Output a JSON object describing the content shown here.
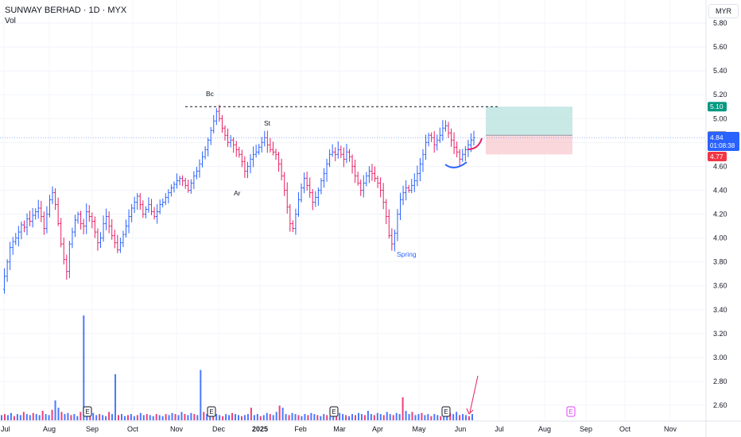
{
  "header": {
    "title": "SUNWAY BERHAD · 1D · MYX",
    "indicator": "Vol",
    "currency": "MYR"
  },
  "chart_data": {
    "type": "candlestick",
    "ylim": [
      2.5,
      5.92
    ],
    "y_ticks": [
      "5.80",
      "5.60",
      "5.40",
      "5.20",
      "5.00",
      "4.80",
      "4.60",
      "4.40",
      "4.20",
      "4.00",
      "3.80",
      "3.60",
      "3.40",
      "3.20",
      "3.00",
      "2.80",
      "2.60"
    ],
    "x_ticks": [
      "Jul",
      "Aug",
      "Sep",
      "Oct",
      "Nov",
      "Dec",
      "2025",
      "Feb",
      "Mar",
      "Apr",
      "May",
      "Jun",
      "Jul",
      "Aug",
      "Sep",
      "Oct",
      "Nov"
    ],
    "price_labels": {
      "target": "5.10",
      "prev": "4.86",
      "current": "4.84",
      "countdown": "01:08:38",
      "stop": "4.77"
    },
    "levels": {
      "resistance": 5.1,
      "current": 4.84,
      "entry": 4.86,
      "stop": 4.77
    },
    "annotations": [
      {
        "text": "Bc",
        "price": 5.2
      },
      {
        "text": "St",
        "price": 4.97
      },
      {
        "text": "Ar",
        "price": 4.4
      },
      {
        "text": "Spring",
        "price": 3.82
      }
    ],
    "earnings_markers": [
      "E",
      "E",
      "E",
      "E",
      "E"
    ],
    "colors": {
      "up": "#2962ff",
      "down": "#e91e63",
      "target_zone": "#b2dfdb",
      "stop_zone": "#f8c6cc",
      "target_badge": "#089981",
      "stop_badge": "#f23645",
      "current_badge": "#2962ff",
      "prev_badge": "#787b86"
    },
    "price_path": [
      3.57,
      3.68,
      3.8,
      3.92,
      3.97,
      4.0,
      4.05,
      4.11,
      4.09,
      4.16,
      4.14,
      4.19,
      4.22,
      4.25,
      4.18,
      4.08,
      4.2,
      4.32,
      4.38,
      4.28,
      4.12,
      3.95,
      3.82,
      3.72,
      3.95,
      4.05,
      4.15,
      4.2,
      4.12,
      4.1,
      4.22,
      4.18,
      4.14,
      4.05,
      3.96,
      4.0,
      4.12,
      4.18,
      4.1,
      4.02,
      3.96,
      3.9,
      3.96,
      4.03,
      4.1,
      4.18,
      4.25,
      4.3,
      4.35,
      4.28,
      4.2,
      4.24,
      4.28,
      4.22,
      4.18,
      4.22,
      4.28,
      4.3,
      4.34,
      4.38,
      4.42,
      4.45,
      4.48,
      4.5,
      4.48,
      4.44,
      4.4,
      4.46,
      4.52,
      4.56,
      4.62,
      4.68,
      4.74,
      4.82,
      4.9,
      4.98,
      5.06,
      5.0,
      4.92,
      4.86,
      4.8,
      4.82,
      4.78,
      4.74,
      4.7,
      4.64,
      4.56,
      4.6,
      4.66,
      4.7,
      4.72,
      4.76,
      4.8,
      4.84,
      4.78,
      4.74,
      4.72,
      4.7,
      4.62,
      4.52,
      4.4,
      4.26,
      4.12,
      4.08,
      4.2,
      4.32,
      4.42,
      4.5,
      4.44,
      4.38,
      4.3,
      4.34,
      4.4,
      4.48,
      4.54,
      4.62,
      4.7,
      4.72,
      4.7,
      4.74,
      4.7,
      4.66,
      4.72,
      4.68,
      4.6,
      4.52,
      4.46,
      4.4,
      4.46,
      4.52,
      4.56,
      4.54,
      4.5,
      4.46,
      4.4,
      4.3,
      4.18,
      4.02,
      3.95,
      4.04,
      4.2,
      4.32,
      4.38,
      4.42,
      4.4,
      4.44,
      4.48,
      4.54,
      4.62,
      4.7,
      4.8,
      4.86,
      4.84,
      4.78,
      4.82,
      4.86,
      4.92,
      4.94,
      4.88,
      4.82,
      4.76,
      4.72,
      4.66,
      4.7,
      4.74,
      4.78,
      4.82,
      4.84
    ],
    "volume_path": [
      0.05,
      0.06,
      0.05,
      0.07,
      0.04,
      0.06,
      0.05,
      0.08,
      0.06,
      0.05,
      0.07,
      0.06,
      0.05,
      0.09,
      0.06,
      0.05,
      0.1,
      0.19,
      0.12,
      0.08,
      0.06,
      0.07,
      0.05,
      0.06,
      0.04,
      0.08,
      1.0,
      0.06,
      0.05,
      0.07,
      0.05,
      0.06,
      0.05,
      0.04,
      0.08,
      0.06,
      0.44,
      0.05,
      0.06,
      0.04,
      0.05,
      0.06,
      0.04,
      0.05,
      0.07,
      0.05,
      0.06,
      0.05,
      0.04,
      0.06,
      0.05,
      0.04,
      0.06,
      0.05,
      0.07,
      0.06,
      0.05,
      0.08,
      0.06,
      0.05,
      0.07,
      0.06,
      0.05,
      0.48,
      0.08,
      0.06,
      0.05,
      0.07,
      0.06,
      0.05,
      0.04,
      0.06,
      0.05,
      0.07,
      0.06,
      0.05,
      0.04,
      0.05,
      0.06,
      0.12,
      0.05,
      0.06,
      0.04,
      0.05,
      0.07,
      0.06,
      0.05,
      0.08,
      0.14,
      0.12,
      0.06,
      0.05,
      0.07,
      0.06,
      0.05,
      0.04,
      0.06,
      0.05,
      0.07,
      0.06,
      0.05,
      0.04,
      0.06,
      0.05,
      0.04,
      0.06,
      0.05,
      0.07,
      0.06,
      0.05,
      0.04,
      0.06,
      0.05,
      0.07,
      0.06,
      0.05,
      0.09,
      0.06,
      0.05,
      0.07,
      0.06,
      0.05,
      0.08,
      0.06,
      0.05,
      0.07,
      0.06,
      0.22,
      0.09,
      0.06,
      0.08,
      0.05,
      0.06,
      0.07,
      0.05,
      0.06,
      0.04,
      0.06,
      0.05,
      0.04,
      0.06,
      0.05,
      0.07,
      0.06,
      0.08,
      0.05,
      0.06,
      0.05,
      0.04,
      0.06
    ]
  }
}
